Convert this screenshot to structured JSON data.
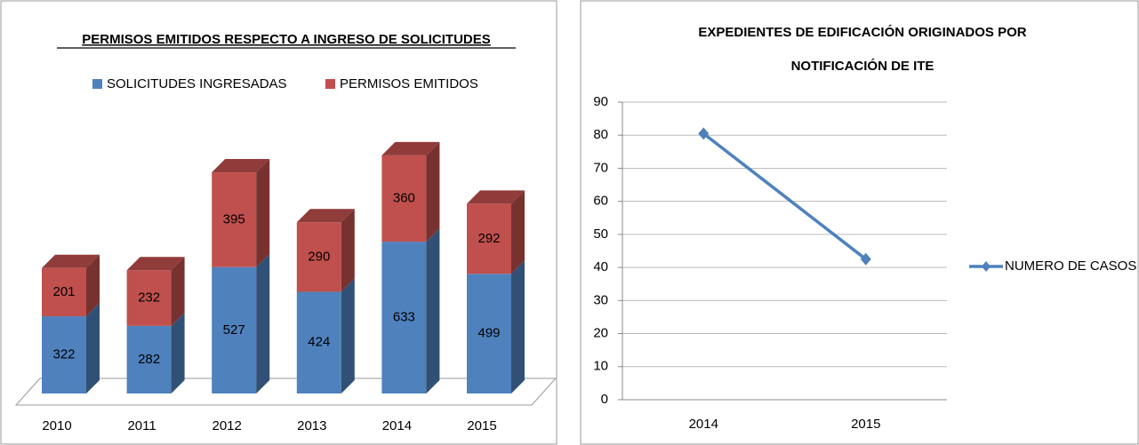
{
  "chart_data": [
    {
      "type": "bar3d_stacked",
      "title": "PERMISOS EMITIDOS RESPECTO A INGRESO DE SOLICITUDES",
      "categories": [
        "2010",
        "2011",
        "2012",
        "2013",
        "2014",
        "2015"
      ],
      "series": [
        {
          "name": "SOLICITUDES INGRESADAS",
          "color": "#4f81bd",
          "values": [
            322,
            282,
            527,
            424,
            633,
            499
          ]
        },
        {
          "name": "PERMISOS EMITIDOS",
          "color": "#c0504d",
          "values": [
            201,
            232,
            395,
            290,
            360,
            292
          ]
        }
      ],
      "legend": "top"
    },
    {
      "type": "line",
      "title": [
        "EXPEDIENTES DE EDIFICACIÓN ORIGINADOS POR",
        "NOTIFICACIÓN DE ITE"
      ],
      "categories": [
        "2014",
        "2015"
      ],
      "series": [
        {
          "name": "NUMERO DE CASOS",
          "color": "#4f81bd",
          "values": [
            80.5,
            42.5
          ]
        }
      ],
      "ylim": [
        0,
        90
      ],
      "yticks": [
        0,
        10,
        20,
        30,
        40,
        50,
        60,
        70,
        80,
        90
      ],
      "grid": true,
      "legend": "right"
    }
  ]
}
